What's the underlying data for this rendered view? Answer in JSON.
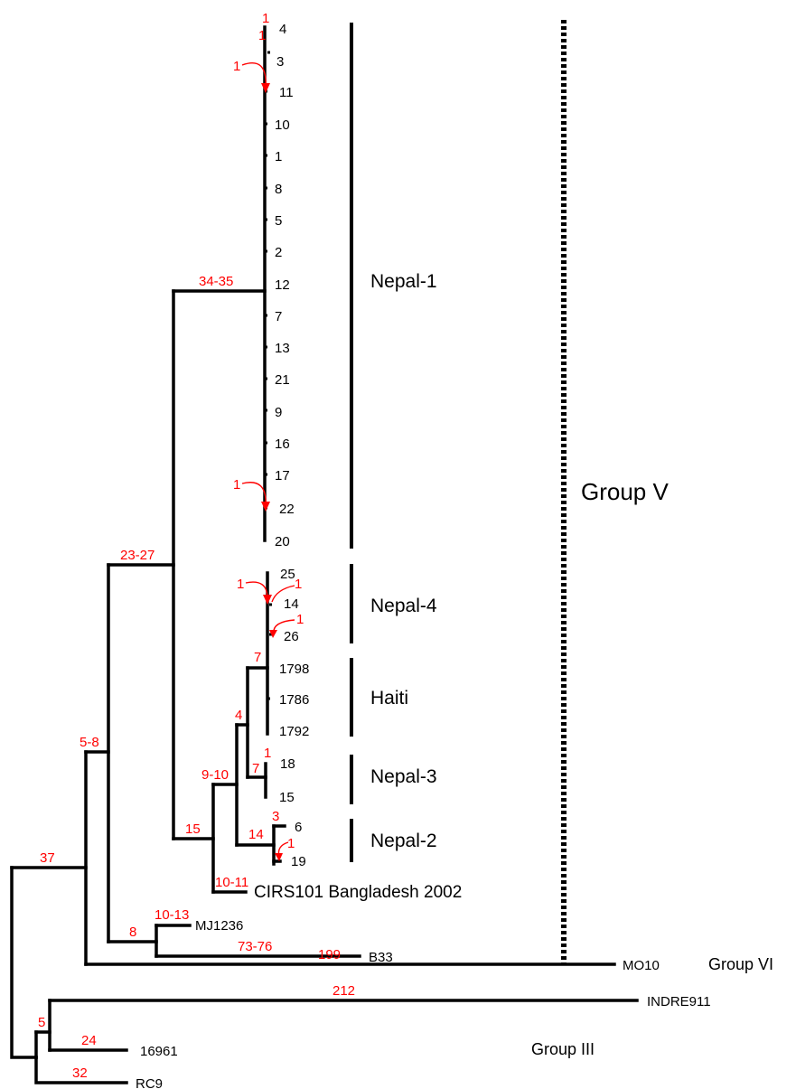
{
  "tips": [
    "4",
    "3",
    "11",
    "10",
    "1",
    "8",
    "5",
    "2",
    "12",
    "7",
    "13",
    "21",
    "9",
    "16",
    "17",
    "22",
    "20",
    "25",
    "14",
    "26",
    "1798",
    "1786",
    "1792",
    "18",
    "15",
    "6",
    "19",
    "CIRS101 Bangladesh 2002",
    "MJ1236",
    "B33",
    "MO10",
    "INDRE911",
    "16961",
    "RC9"
  ],
  "branch_labels": [
    "1",
    "1",
    "1",
    "34-35",
    "1",
    "23-27",
    "1",
    "1",
    "1",
    "7",
    "4",
    "1",
    "7",
    "9-10",
    "3",
    "14",
    "1",
    "15",
    "10-11",
    "5-8",
    "10-13",
    "8",
    "73-76",
    "37",
    "199",
    "5",
    "212",
    "24",
    "32"
  ],
  "clades": [
    "Nepal-1",
    "Nepal-4",
    "Haiti",
    "Nepal-3",
    "Nepal-2"
  ],
  "groups": [
    "Group V",
    "Group VI",
    "Group III"
  ],
  "colors": {
    "branch": "#000000",
    "branch_length": "#ff0000",
    "text": "#000000"
  }
}
